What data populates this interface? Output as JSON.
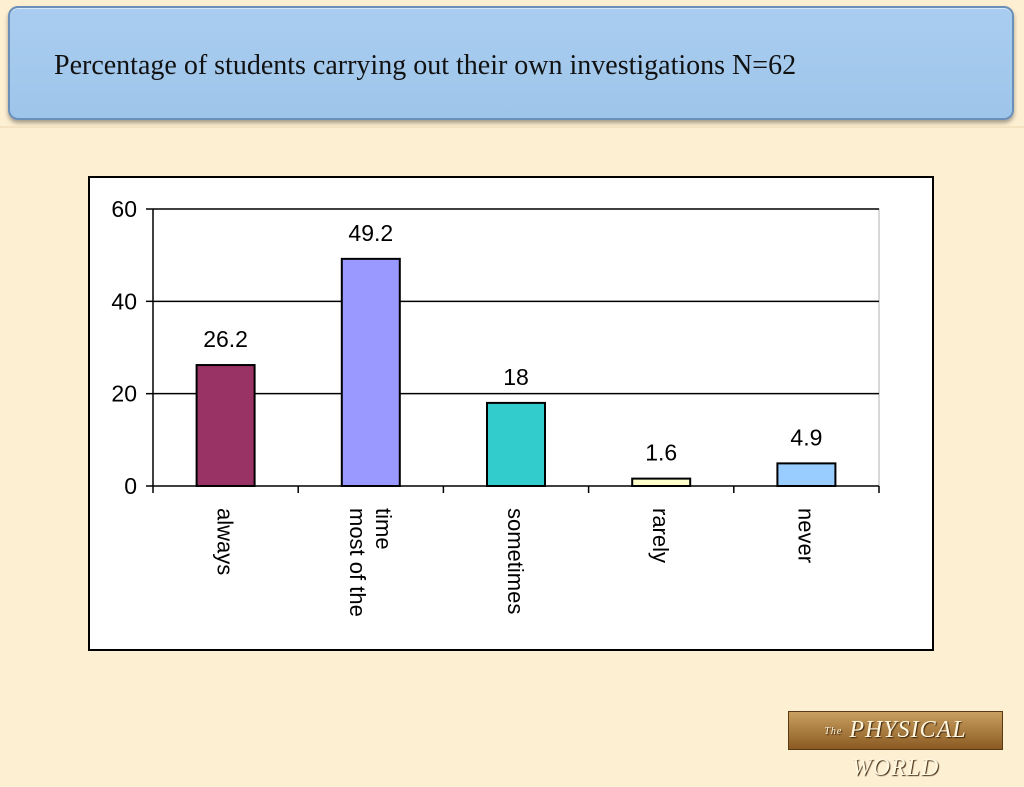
{
  "header": {
    "title": "Percentage of students carrying out their own investigations N=62"
  },
  "logo": {
    "the": "The",
    "text": "PHYSICAL WORLD"
  },
  "chart_data": {
    "type": "bar",
    "title": "",
    "xlabel": "",
    "ylabel": "",
    "ylim": [
      0,
      60
    ],
    "yticks": [
      0,
      20,
      40,
      60
    ],
    "grid": true,
    "legend": "none",
    "categories": [
      [
        "always"
      ],
      [
        "most of the",
        "time"
      ],
      [
        "sometimes"
      ],
      [
        "rarely"
      ],
      [
        "never"
      ]
    ],
    "values": [
      26.2,
      49.2,
      18,
      1.6,
      4.9
    ],
    "value_labels": [
      "26.2",
      "49.2",
      "18",
      "1.6",
      "4.9"
    ],
    "colors": [
      "#993366",
      "#9999ff",
      "#33cccc",
      "#ffffcc",
      "#99ccff"
    ]
  }
}
